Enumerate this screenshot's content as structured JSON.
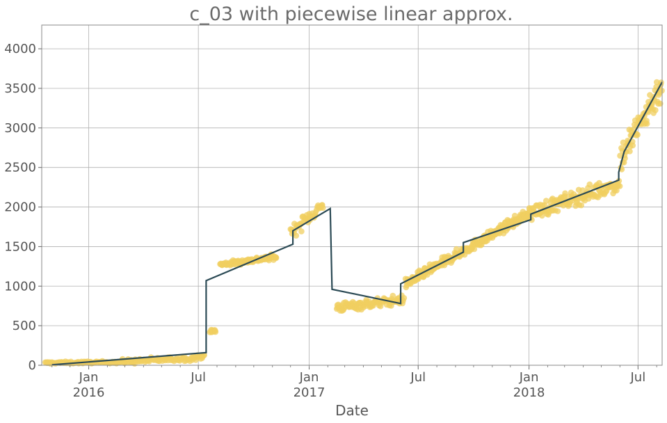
{
  "chart_data": {
    "type": "scatter",
    "title": "c_03 with piecewise linear approx.",
    "xlabel": "Date",
    "ylabel": "",
    "xlim": [
      "2015-10-15",
      "2018-08-10"
    ],
    "ylim": [
      0,
      4300
    ],
    "grid": true,
    "x_ticks": [
      {
        "date": "2016-01-01",
        "label": "Jan",
        "year": "2016"
      },
      {
        "date": "2016-07-01",
        "label": "Jul",
        "year": ""
      },
      {
        "date": "2017-01-01",
        "label": "Jan",
        "year": "2017"
      },
      {
        "date": "2017-07-01",
        "label": "Jul",
        "year": ""
      },
      {
        "date": "2018-01-01",
        "label": "Jan",
        "year": "2018"
      },
      {
        "date": "2018-07-01",
        "label": "Jul",
        "year": ""
      }
    ],
    "y_ticks": [
      0,
      500,
      1000,
      1500,
      2000,
      2500,
      3000,
      3500,
      4000
    ],
    "series": [
      {
        "kind": "scatter",
        "color": "#f0cf60",
        "segments": [
          {
            "start": "2015-10-20",
            "end": "2016-02-15",
            "y0": 30,
            "y1": 40,
            "spread": 15,
            "n": 80
          },
          {
            "start": "2016-02-15",
            "end": "2016-07-01",
            "y0": 40,
            "y1": 95,
            "spread": 35,
            "n": 90
          },
          {
            "start": "2016-07-01",
            "end": "2016-07-12",
            "y0": 95,
            "y1": 140,
            "spread": 30,
            "n": 8
          },
          {
            "start": "2016-07-20",
            "end": "2016-07-30",
            "y0": 420,
            "y1": 440,
            "spread": 25,
            "n": 12
          },
          {
            "start": "2016-08-06",
            "end": "2016-11-08",
            "y0": 1270,
            "y1": 1370,
            "spread": 35,
            "n": 110
          },
          {
            "start": "2016-12-01",
            "end": "2017-01-25",
            "y0": 1680,
            "y1": 2030,
            "spread": 90,
            "n": 45
          },
          {
            "start": "2017-02-15",
            "end": "2017-06-08",
            "y0": 730,
            "y1": 830,
            "spread": 65,
            "n": 110
          },
          {
            "start": "2017-06-10",
            "end": "2017-09-20",
            "y0": 1030,
            "y1": 1470,
            "spread": 65,
            "n": 150
          },
          {
            "start": "2017-09-20",
            "end": "2018-01-01",
            "y0": 1470,
            "y1": 1920,
            "spread": 65,
            "n": 140
          },
          {
            "start": "2018-01-01",
            "end": "2018-06-01",
            "y0": 1920,
            "y1": 2300,
            "spread": 110,
            "n": 140
          },
          {
            "start": "2018-06-01",
            "end": "2018-08-10",
            "y0": 2600,
            "y1": 3550,
            "spread": 220,
            "n": 80
          }
        ]
      },
      {
        "kind": "line",
        "color": "#2b4a55",
        "points": [
          [
            "2015-11-01",
            5
          ],
          [
            "2016-07-14",
            160
          ],
          [
            "2016-07-14",
            1070
          ],
          [
            "2016-12-05",
            1530
          ],
          [
            "2016-12-05",
            1700
          ],
          [
            "2017-02-05",
            1980
          ],
          [
            "2017-02-08",
            960
          ],
          [
            "2017-06-02",
            780
          ],
          [
            "2017-06-02",
            1030
          ],
          [
            "2017-09-14",
            1430
          ],
          [
            "2017-09-14",
            1550
          ],
          [
            "2018-01-04",
            1840
          ],
          [
            "2018-01-04",
            1910
          ],
          [
            "2018-05-30",
            2340
          ],
          [
            "2018-05-30",
            2440
          ],
          [
            "2018-06-08",
            2700
          ],
          [
            "2018-08-10",
            3580
          ]
        ]
      }
    ]
  }
}
